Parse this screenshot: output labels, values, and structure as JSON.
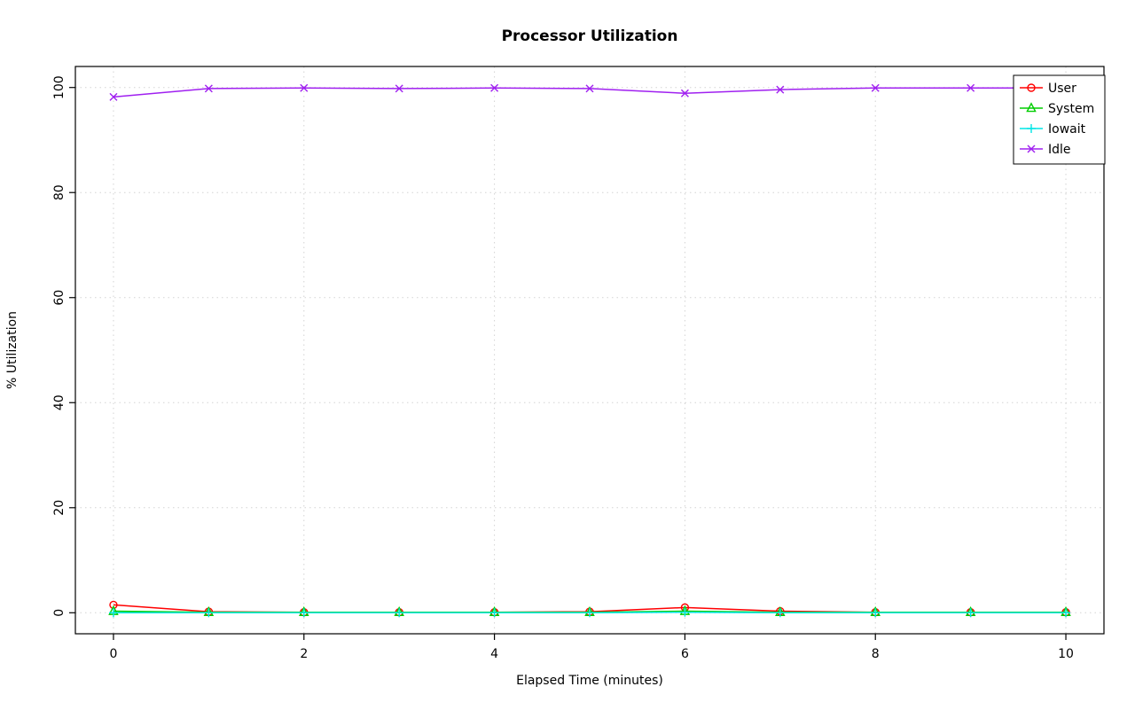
{
  "chart_data": {
    "type": "line",
    "title": "Processor Utilization",
    "xlabel": "Elapsed Time (minutes)",
    "ylabel": "% Utilization",
    "xlim": [
      0,
      10
    ],
    "ylim": [
      0,
      100
    ],
    "x_ticks": [
      0,
      2,
      4,
      6,
      8,
      10
    ],
    "y_ticks": [
      0,
      20,
      40,
      60,
      80,
      100
    ],
    "grid": true,
    "legend_position": "top-right",
    "x": [
      0,
      1,
      2,
      3,
      4,
      5,
      6,
      7,
      8,
      9,
      10
    ],
    "series": [
      {
        "name": "User",
        "color": "#ff0000",
        "symbol": "circle",
        "values": [
          1.5,
          0.2,
          0.1,
          0.1,
          0.1,
          0.2,
          1.0,
          0.3,
          0.1,
          0.1,
          0.1
        ]
      },
      {
        "name": "System",
        "color": "#00cd00",
        "symbol": "triangle",
        "values": [
          0.3,
          0.1,
          0.1,
          0.1,
          0.1,
          0.1,
          0.3,
          0.1,
          0.1,
          0.1,
          0.1
        ]
      },
      {
        "name": "Iowait",
        "color": "#00e5e5",
        "symbol": "plus",
        "values": [
          0,
          0,
          0,
          0,
          0,
          0,
          0.1,
          0,
          0,
          0,
          0
        ]
      },
      {
        "name": "Idle",
        "color": "#a020f0",
        "symbol": "x",
        "values": [
          98.2,
          99.8,
          99.9,
          99.8,
          99.9,
          99.8,
          98.9,
          99.6,
          99.9,
          99.9,
          99.9
        ]
      }
    ],
    "colors": {
      "grid": "#d3d3d3",
      "axis": "#000000",
      "background": "#ffffff"
    }
  }
}
